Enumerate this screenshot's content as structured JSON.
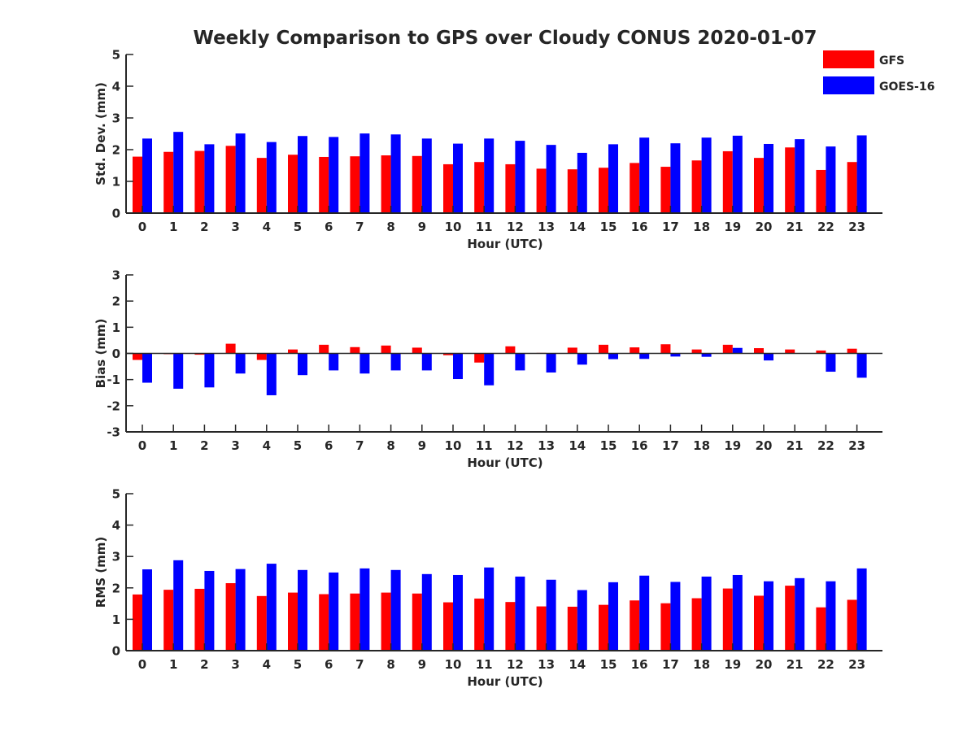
{
  "figure": {
    "title": "Weekly Comparison to GPS over Cloudy CONUS 2020-01-07"
  },
  "legend": {
    "placement": "top-right",
    "entries": [
      {
        "label": "GFS",
        "color": "#ff0000"
      },
      {
        "label": "GOES-16",
        "color": "#0000ff"
      }
    ]
  },
  "chart_data": [
    {
      "type": "bar",
      "id": "std",
      "xlabel": "Hour (UTC)",
      "ylabel": "Std. Dev. (mm)",
      "ylim": [
        0,
        5
      ],
      "yticks": [
        0,
        1,
        2,
        3,
        4,
        5
      ],
      "categories": [
        "0",
        "1",
        "2",
        "3",
        "4",
        "5",
        "6",
        "7",
        "8",
        "9",
        "10",
        "11",
        "12",
        "13",
        "14",
        "15",
        "16",
        "17",
        "18",
        "19",
        "20",
        "21",
        "22",
        "23"
      ],
      "series": [
        {
          "name": "GFS",
          "color": "#ff0000",
          "values": [
            1.78,
            1.93,
            1.96,
            2.12,
            1.74,
            1.84,
            1.77,
            1.79,
            1.82,
            1.8,
            1.54,
            1.61,
            1.54,
            1.4,
            1.38,
            1.43,
            1.58,
            1.46,
            1.66,
            1.95,
            1.74,
            2.07,
            1.36,
            1.61
          ]
        },
        {
          "name": "GOES-16",
          "color": "#0000ff",
          "values": [
            2.35,
            2.56,
            2.17,
            2.51,
            2.24,
            2.43,
            2.4,
            2.51,
            2.48,
            2.35,
            2.19,
            2.35,
            2.28,
            2.15,
            1.9,
            2.17,
            2.38,
            2.2,
            2.38,
            2.44,
            2.18,
            2.33,
            2.1,
            2.45
          ]
        }
      ]
    },
    {
      "type": "bar",
      "id": "bias",
      "xlabel": "Hour (UTC)",
      "ylabel": "Bias (mm)",
      "ylim": [
        -3,
        3
      ],
      "yticks": [
        -3,
        -2,
        -1,
        0,
        1,
        2,
        3
      ],
      "categories": [
        "0",
        "1",
        "2",
        "3",
        "4",
        "5",
        "6",
        "7",
        "8",
        "9",
        "10",
        "11",
        "12",
        "13",
        "14",
        "15",
        "16",
        "17",
        "18",
        "19",
        "20",
        "21",
        "22",
        "23"
      ],
      "series": [
        {
          "name": "GFS",
          "color": "#ff0000",
          "values": [
            -0.25,
            -0.03,
            -0.05,
            0.37,
            -0.25,
            0.15,
            0.33,
            0.24,
            0.3,
            0.22,
            -0.07,
            -0.35,
            0.27,
            0.02,
            0.22,
            0.33,
            0.23,
            0.35,
            0.15,
            0.33,
            0.2,
            0.15,
            0.11,
            0.18
          ]
        },
        {
          "name": "GOES-16",
          "color": "#0000ff",
          "values": [
            -1.12,
            -1.35,
            -1.3,
            -0.77,
            -1.6,
            -0.83,
            -0.65,
            -0.77,
            -0.65,
            -0.65,
            -0.98,
            -1.22,
            -0.65,
            -0.73,
            -0.43,
            -0.22,
            -0.21,
            -0.12,
            -0.13,
            0.21,
            -0.27,
            0.0,
            -0.7,
            -0.93
          ]
        }
      ]
    },
    {
      "type": "bar",
      "id": "rms",
      "xlabel": "Hour (UTC)",
      "ylabel": "RMS (mm)",
      "ylim": [
        0,
        5
      ],
      "yticks": [
        0,
        1,
        2,
        3,
        4,
        5
      ],
      "categories": [
        "0",
        "1",
        "2",
        "3",
        "4",
        "5",
        "6",
        "7",
        "8",
        "9",
        "10",
        "11",
        "12",
        "13",
        "14",
        "15",
        "16",
        "17",
        "18",
        "19",
        "20",
        "21",
        "22",
        "23"
      ],
      "series": [
        {
          "name": "GFS",
          "color": "#ff0000",
          "values": [
            1.79,
            1.94,
            1.97,
            2.15,
            1.74,
            1.85,
            1.8,
            1.82,
            1.85,
            1.82,
            1.54,
            1.66,
            1.55,
            1.41,
            1.4,
            1.46,
            1.6,
            1.51,
            1.67,
            1.98,
            1.75,
            2.07,
            1.38,
            1.62
          ]
        },
        {
          "name": "GOES-16",
          "color": "#0000ff",
          "values": [
            2.59,
            2.88,
            2.54,
            2.6,
            2.77,
            2.57,
            2.49,
            2.62,
            2.57,
            2.44,
            2.41,
            2.65,
            2.36,
            2.26,
            1.93,
            2.18,
            2.39,
            2.19,
            2.36,
            2.41,
            2.21,
            2.31,
            2.21,
            2.62
          ]
        }
      ]
    }
  ]
}
